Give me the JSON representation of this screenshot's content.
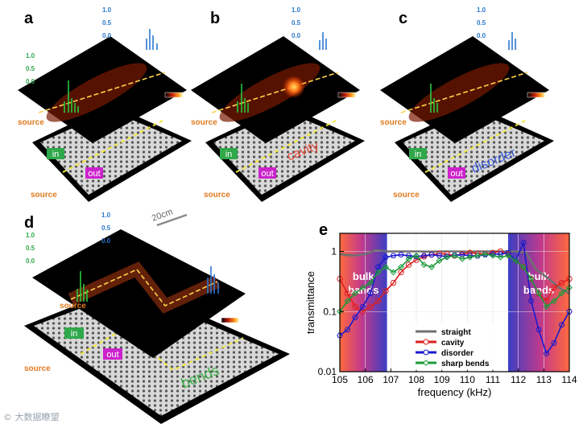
{
  "panels": {
    "a": {
      "letter": "a",
      "source_top": "source",
      "source_bottom": "source",
      "tag_in": "in",
      "tag_out": "out"
    },
    "b": {
      "letter": "b",
      "source_top": "source",
      "source_bottom": "source",
      "tag_in": "in",
      "tag_out": "out",
      "feature": "cavity"
    },
    "c": {
      "letter": "c",
      "source_top": "source",
      "source_bottom": "source",
      "tag_in": "in",
      "tag_out": "out",
      "feature": "disorder"
    },
    "d": {
      "letter": "d",
      "source_top": "source",
      "source_bottom": "source",
      "tag_in": "in",
      "tag_out": "out",
      "feature": "bends",
      "scale_bar": "20cm"
    },
    "e": {
      "letter": "e"
    }
  },
  "amp_ticks": [
    "1.0",
    "0.5",
    "0.0"
  ],
  "colors": {
    "green_marker": "#2fa84a",
    "blue_marker": "#2a78d0",
    "source_orange": "#e07a1f",
    "tag_in": "#2fa84a",
    "tag_out": "#cc22cc",
    "cavity": "#e2483a",
    "disorder": "#3a5ad8",
    "bends": "#3fb04a"
  },
  "watermark": "© 大数据瞭望",
  "chart_data": {
    "type": "line",
    "title": "",
    "xlabel": "frequency (kHz)",
    "ylabel": "transmittance",
    "xlim": [
      105,
      114
    ],
    "ylim": [
      0.01,
      2
    ],
    "yscale": "log",
    "x_ticks": [
      "105",
      "106",
      "107",
      "108",
      "109",
      "110",
      "111",
      "112",
      "113",
      "114"
    ],
    "y_ticks": [
      "0.01",
      "0.1",
      "1"
    ],
    "regions": [
      {
        "label": "bulk bands",
        "from": 105.0,
        "to": 106.85
      },
      {
        "label": "bulk bands",
        "from": 111.6,
        "to": 114.0
      }
    ],
    "series": [
      {
        "name": "straight",
        "color": "#707070",
        "marker": "none",
        "x": [
          105.0,
          105.5,
          106.0,
          106.4,
          106.9,
          107.5,
          108.0,
          108.5,
          109.0,
          109.5,
          110.0,
          110.5,
          111.0,
          111.5,
          111.9,
          112.3,
          112.7,
          113.2,
          113.6,
          114.0
        ],
        "y": [
          0.9,
          0.85,
          0.9,
          1.05,
          1.0,
          1.0,
          1.0,
          0.99,
          1.0,
          1.0,
          0.99,
          1.0,
          1.0,
          1.0,
          1.0,
          0.95,
          0.5,
          0.35,
          0.25,
          0.2
        ]
      },
      {
        "name": "cavity",
        "color": "#dd1f1f",
        "marker": "circle",
        "x": [
          105.0,
          105.3,
          105.6,
          105.9,
          106.2,
          106.5,
          106.8,
          107.1,
          107.4,
          107.7,
          108.0,
          108.3,
          108.6,
          108.9,
          109.2,
          109.5,
          109.8,
          110.1,
          110.4,
          110.7,
          111.0,
          111.3,
          111.6,
          111.9,
          112.2,
          112.5,
          112.8,
          113.1,
          113.4,
          113.7,
          114.0
        ],
        "y": [
          0.35,
          0.2,
          0.12,
          0.1,
          0.12,
          0.15,
          0.22,
          0.3,
          0.45,
          0.6,
          0.72,
          0.82,
          0.88,
          0.92,
          0.9,
          0.85,
          0.9,
          0.95,
          0.92,
          0.9,
          0.95,
          1.0,
          0.9,
          0.7,
          0.55,
          0.35,
          0.2,
          0.15,
          0.25,
          0.3,
          0.35
        ]
      },
      {
        "name": "disorder",
        "color": "#1a1acc",
        "marker": "hexagon",
        "x": [
          105.0,
          105.3,
          105.6,
          105.9,
          106.2,
          106.5,
          106.8,
          107.1,
          107.4,
          107.7,
          108.0,
          108.3,
          108.6,
          108.9,
          109.2,
          109.5,
          109.8,
          110.1,
          110.4,
          110.7,
          111.0,
          111.3,
          111.6,
          111.9,
          112.2,
          112.5,
          112.8,
          113.1,
          113.4,
          113.7,
          114.0
        ],
        "y": [
          0.04,
          0.05,
          0.08,
          0.12,
          0.2,
          0.55,
          0.8,
          0.85,
          0.88,
          0.85,
          0.82,
          0.85,
          0.88,
          0.85,
          0.82,
          0.86,
          0.88,
          0.85,
          0.84,
          0.88,
          0.9,
          0.9,
          0.95,
          0.7,
          1.4,
          0.15,
          0.05,
          0.02,
          0.03,
          0.06,
          0.1
        ]
      },
      {
        "name": "sharp bends",
        "color": "#1a9a3a",
        "marker": "diamond",
        "x": [
          105.0,
          105.3,
          105.6,
          105.9,
          106.2,
          106.5,
          106.8,
          107.1,
          107.4,
          107.7,
          108.0,
          108.3,
          108.6,
          108.9,
          109.2,
          109.5,
          109.8,
          110.1,
          110.4,
          110.7,
          111.0,
          111.3,
          111.6,
          111.9,
          112.2,
          112.5,
          112.8,
          113.1,
          113.4,
          113.7,
          114.0
        ],
        "y": [
          0.1,
          0.15,
          0.2,
          0.25,
          0.3,
          0.45,
          0.55,
          0.45,
          0.55,
          0.75,
          0.85,
          0.6,
          0.55,
          0.7,
          0.8,
          0.85,
          0.75,
          0.8,
          0.85,
          0.9,
          0.85,
          0.8,
          0.85,
          0.7,
          0.55,
          0.35,
          0.2,
          0.12,
          0.15,
          0.2,
          0.25
        ]
      }
    ]
  }
}
